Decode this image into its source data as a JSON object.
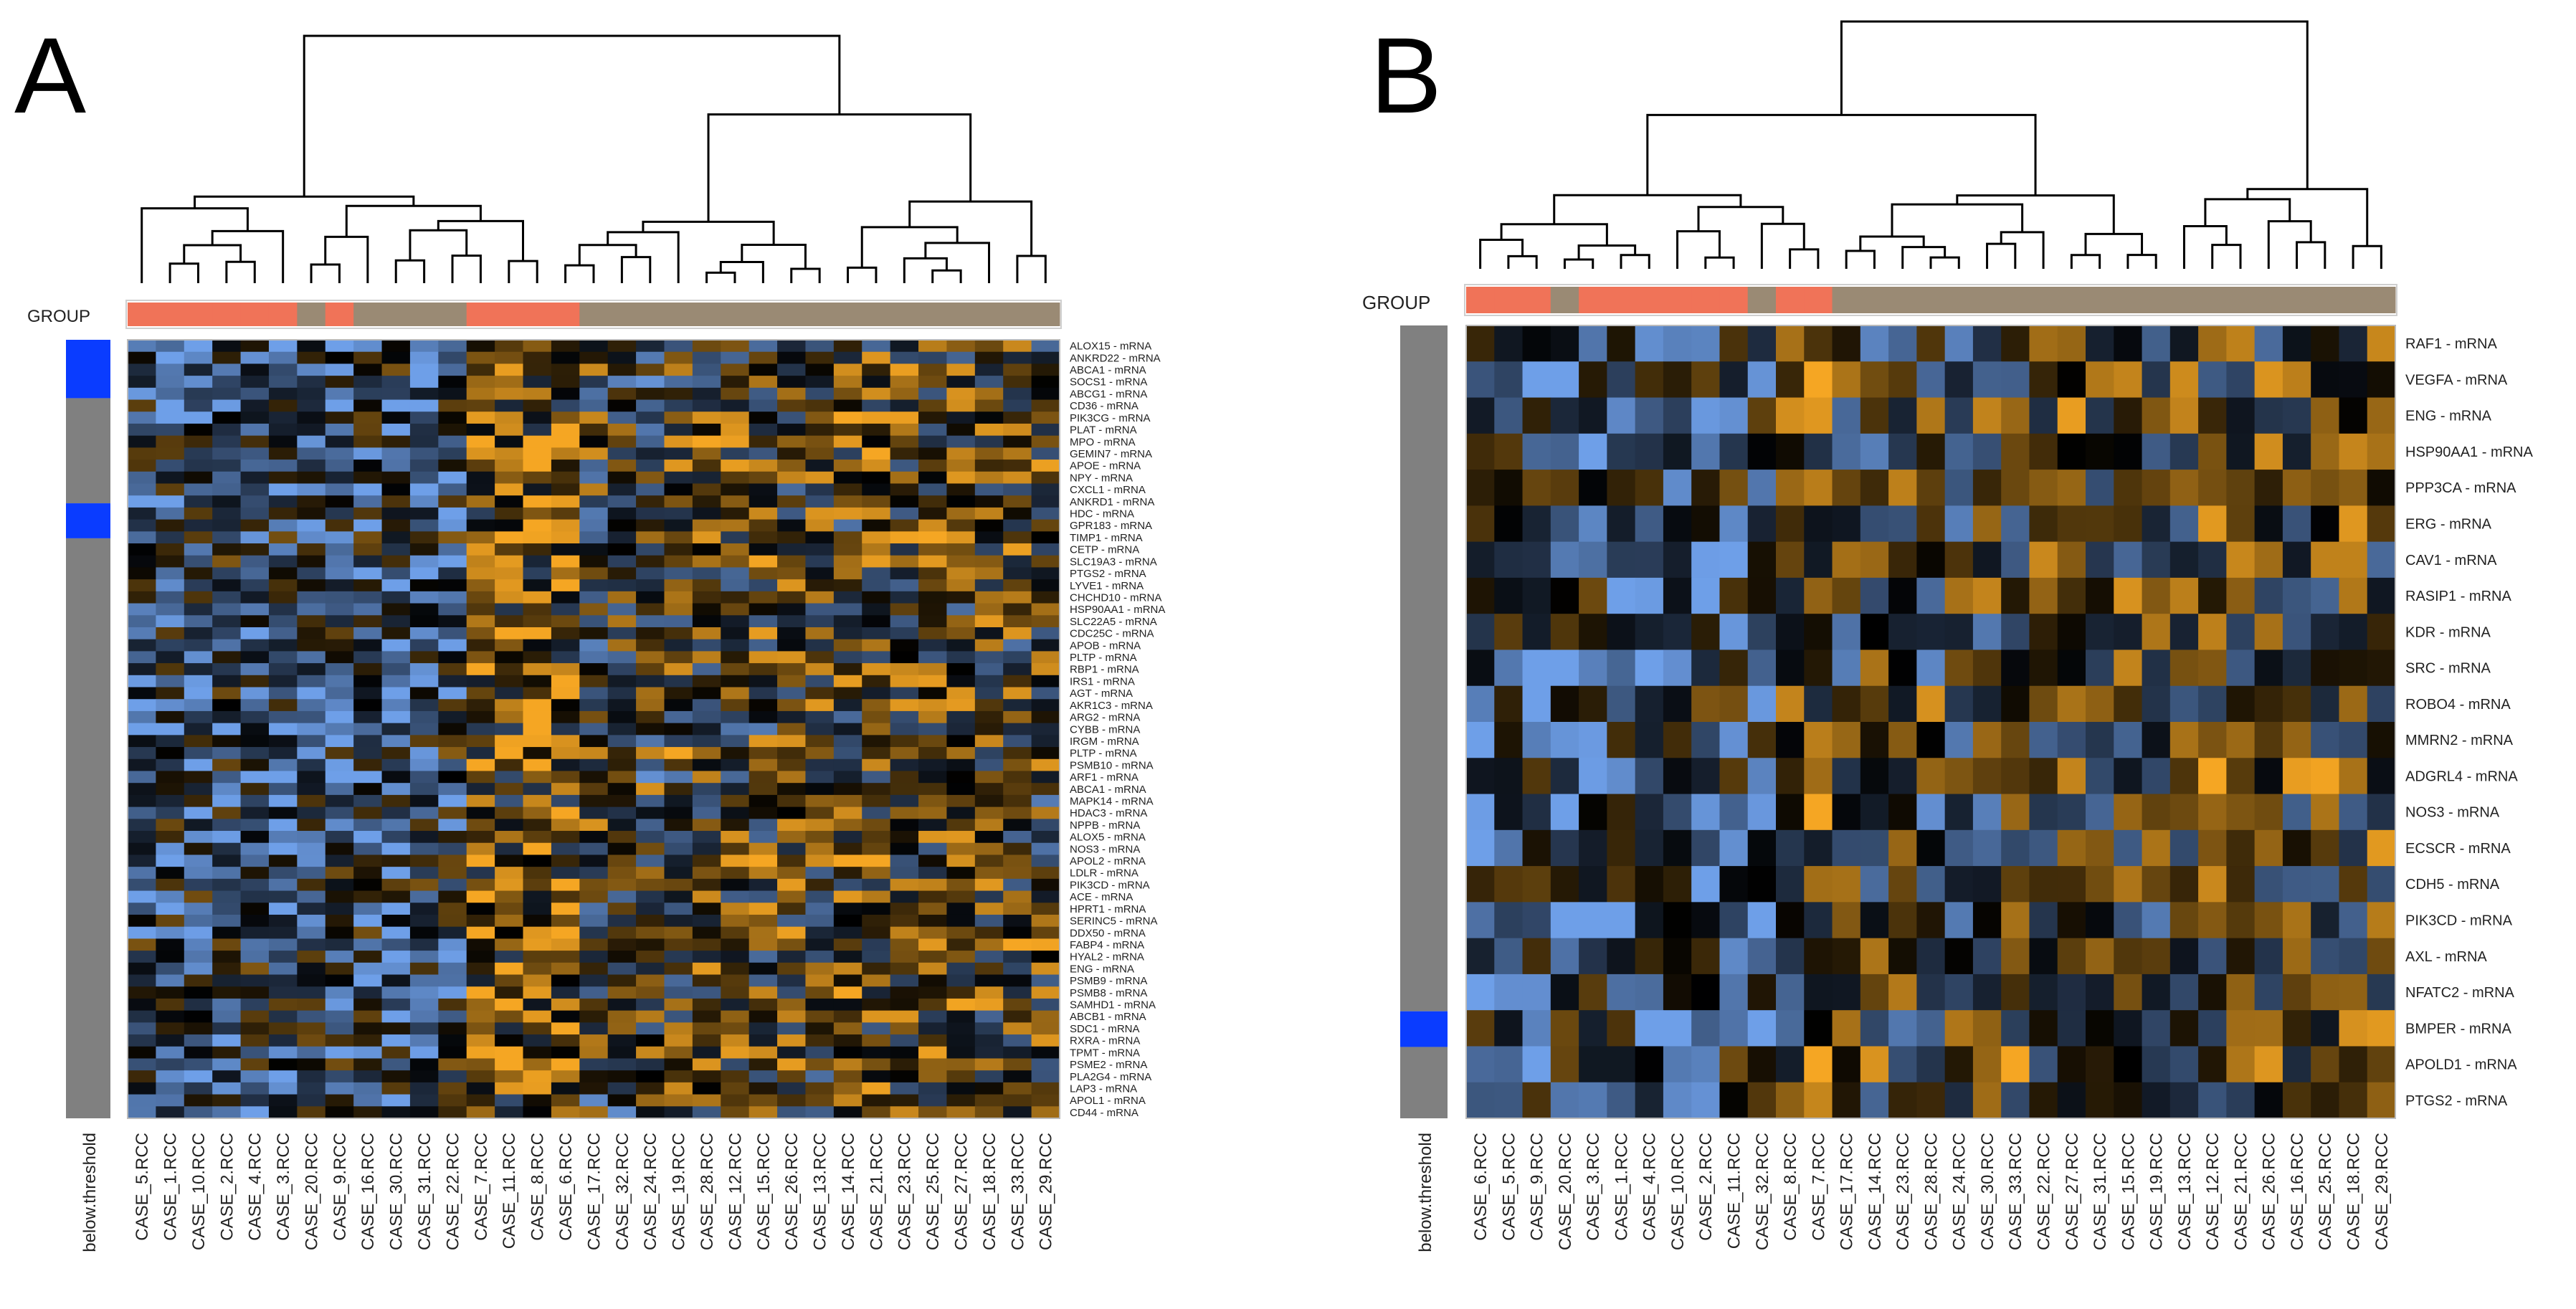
{
  "chart_data": [
    {
      "type": "heatmap",
      "panel_label": "A",
      "group_label": "GROUP",
      "below_threshold_label": "below.threshold",
      "colors": {
        "low": "#6e9fe8",
        "mid": "#000000",
        "high": "#f5a623",
        "group_red": "#f07358",
        "group_tan": "#9a8a74",
        "threshold_blue": "#0a3cff",
        "threshold_gray": "#808080"
      },
      "columns": [
        "CASE_5.RCC",
        "CASE_1.RCC",
        "CASE_10.RCC",
        "CASE_2.RCC",
        "CASE_4.RCC",
        "CASE_3.RCC",
        "CASE_20.RCC",
        "CASE_9.RCC",
        "CASE_16.RCC",
        "CASE_30.RCC",
        "CASE_31.RCC",
        "CASE_22.RCC",
        "CASE_7.RCC",
        "CASE_11.RCC",
        "CASE_8.RCC",
        "CASE_6.RCC",
        "CASE_17.RCC",
        "CASE_32.RCC",
        "CASE_24.RCC",
        "CASE_19.RCC",
        "CASE_28.RCC",
        "CASE_12.RCC",
        "CASE_15.RCC",
        "CASE_26.RCC",
        "CASE_13.RCC",
        "CASE_14.RCC",
        "CASE_21.RCC",
        "CASE_23.RCC",
        "CASE_25.RCC",
        "CASE_27.RCC",
        "CASE_18.RCC",
        "CASE_33.RCC",
        "CASE_29.RCC"
      ],
      "group": [
        "red",
        "red",
        "red",
        "red",
        "red",
        "red",
        "tan",
        "red",
        "tan",
        "tan",
        "tan",
        "tan",
        "red",
        "red",
        "red",
        "red",
        "tan",
        "tan",
        "tan",
        "tan",
        "tan",
        "tan",
        "tan",
        "tan",
        "tan",
        "tan",
        "tan",
        "tan",
        "tan",
        "tan",
        "tan",
        "tan",
        "tan"
      ],
      "rows": [
        "ALOX15 - mRNA",
        "ANKRD22 - mRNA",
        "ABCA1 - mRNA",
        "SOCS1 - mRNA",
        "ABCG1 - mRNA",
        "CD36 - mRNA",
        "PIK3CG - mRNA",
        "PLAT - mRNA",
        "MPO - mRNA",
        "GEMIN7 - mRNA",
        "APOE - mRNA",
        "NPY - mRNA",
        "CXCL1 - mRNA",
        "ANKRD1 - mRNA",
        "HDC - mRNA",
        "GPR183 - mRNA",
        "TIMP1 - mRNA",
        "CETP - mRNA",
        "SLC19A3 - mRNA",
        "PTGS2 - mRNA",
        "LYVE1 - mRNA",
        "CHCHD10 - mRNA",
        "HSP90AA1 - mRNA",
        "SLC22A5 - mRNA",
        "CDC25C - mRNA",
        "APOB - mRNA",
        "PLTP - mRNA",
        "RBP1 - mRNA",
        "IRS1 - mRNA",
        "AGT - mRNA",
        "AKR1C3 - mRNA",
        "ARG2 - mRNA",
        "CYBB - mRNA",
        "IRGM - mRNA",
        "PLTP - mRNA",
        "PSMB10 - mRNA",
        "ARF1 - mRNA",
        "ABCA1 - mRNA",
        "MAPK14 - mRNA",
        "HDAC3 - mRNA",
        "NPPB - mRNA",
        "ALOX5 - mRNA",
        "NOS3 - mRNA",
        "APOL2 - mRNA",
        "LDLR - mRNA",
        "PIK3CD - mRNA",
        "ACE - mRNA",
        "HPRT1 - mRNA",
        "SERINC5 - mRNA",
        "DDX50 - mRNA",
        "FABP4 - mRNA",
        "HYAL2 - mRNA",
        "ENG - mRNA",
        "PSMB9 - mRNA",
        "PSMB8 - mRNA",
        "SAMHD1 - mRNA",
        "ABCB1 - mRNA",
        "SDC1 - mRNA",
        "RXRA - mRNA",
        "TPMT - mRNA",
        "PSME2 - mRNA",
        "PLA2G4 - mRNA",
        "LAP3 - mRNA",
        "APOL1 - mRNA",
        "CD44 - mRNA"
      ],
      "threshold_segments": [
        "blue",
        "gray",
        "blue",
        "gray"
      ]
    },
    {
      "type": "heatmap",
      "panel_label": "B",
      "group_label": "GROUP",
      "below_threshold_label": "below.threshold",
      "colors": {
        "low": "#6e9fe8",
        "mid": "#000000",
        "high": "#f5a623",
        "group_red": "#f07358",
        "group_tan": "#9a8a74",
        "threshold_blue": "#0a3cff",
        "threshold_gray": "#808080"
      },
      "columns": [
        "CASE_6.RCC",
        "CASE_5.RCC",
        "CASE_9.RCC",
        "CASE_20.RCC",
        "CASE_3.RCC",
        "CASE_1.RCC",
        "CASE_4.RCC",
        "CASE_10.RCC",
        "CASE_2.RCC",
        "CASE_11.RCC",
        "CASE_32.RCC",
        "CASE_8.RCC",
        "CASE_7.RCC",
        "CASE_17.RCC",
        "CASE_14.RCC",
        "CASE_23.RCC",
        "CASE_28.RCC",
        "CASE_24.RCC",
        "CASE_30.RCC",
        "CASE_33.RCC",
        "CASE_22.RCC",
        "CASE_27.RCC",
        "CASE_31.RCC",
        "CASE_15.RCC",
        "CASE_19.RCC",
        "CASE_13.RCC",
        "CASE_12.RCC",
        "CASE_21.RCC",
        "CASE_26.RCC",
        "CASE_16.RCC",
        "CASE_25.RCC",
        "CASE_18.RCC",
        "CASE_29.RCC"
      ],
      "group": [
        "red",
        "red",
        "red",
        "tan",
        "red",
        "red",
        "red",
        "red",
        "red",
        "red",
        "tan",
        "red",
        "red",
        "tan",
        "tan",
        "tan",
        "tan",
        "tan",
        "tan",
        "tan",
        "tan",
        "tan",
        "tan",
        "tan",
        "tan",
        "tan",
        "tan",
        "tan",
        "tan",
        "tan",
        "tan",
        "tan",
        "tan"
      ],
      "rows": [
        "RAF1 - mRNA",
        "VEGFA - mRNA",
        "ENG - mRNA",
        "HSP90AA1 - mRNA",
        "PPP3CA - mRNA",
        "ERG - mRNA",
        "CAV1 - mRNA",
        "RASIP1 - mRNA",
        "KDR - mRNA",
        "SRC - mRNA",
        "ROBO4 - mRNA",
        "MMRN2 - mRNA",
        "ADGRL4 - mRNA",
        "NOS3 - mRNA",
        "ECSCR - mRNA",
        "CDH5 - mRNA",
        "PIK3CD - mRNA",
        "AXL - mRNA",
        "NFATC2 - mRNA",
        "BMPER - mRNA",
        "APOLD1 - mRNA",
        "PTGS2 - mRNA"
      ],
      "threshold_segments": [
        "gray",
        "blue",
        "gray"
      ]
    }
  ]
}
